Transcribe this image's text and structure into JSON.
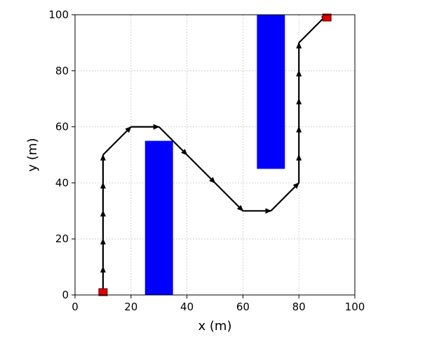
{
  "chart_data": {
    "type": "line",
    "title": "",
    "xlabel": "x (m)",
    "ylabel": "y (m)",
    "xlim": [
      0,
      100
    ],
    "ylim": [
      0,
      100
    ],
    "xticks": [
      "0",
      "20",
      "40",
      "60",
      "80",
      "100"
    ],
    "yticks": [
      "0",
      "20",
      "40",
      "60",
      "80",
      "100"
    ],
    "grid": true,
    "obstacles": [
      {
        "x": [
          25,
          35
        ],
        "y": [
          0,
          55
        ],
        "color": "#0000ff"
      },
      {
        "x": [
          65,
          75
        ],
        "y": [
          45,
          100
        ],
        "color": "#0000ff"
      }
    ],
    "endpoints": [
      {
        "x": 10,
        "y": 1,
        "color": "#dd0000"
      },
      {
        "x": 90,
        "y": 99,
        "color": "#dd0000"
      }
    ],
    "path": {
      "color": "#000000",
      "x": [
        10,
        10,
        10,
        10,
        10,
        10,
        20,
        30,
        40,
        50,
        60,
        70,
        80,
        80,
        80,
        80,
        80,
        80,
        90
      ],
      "y": [
        0,
        10,
        20,
        30,
        40,
        50,
        60,
        60,
        50,
        40,
        30,
        30,
        40,
        50,
        60,
        70,
        80,
        90,
        100
      ]
    }
  }
}
